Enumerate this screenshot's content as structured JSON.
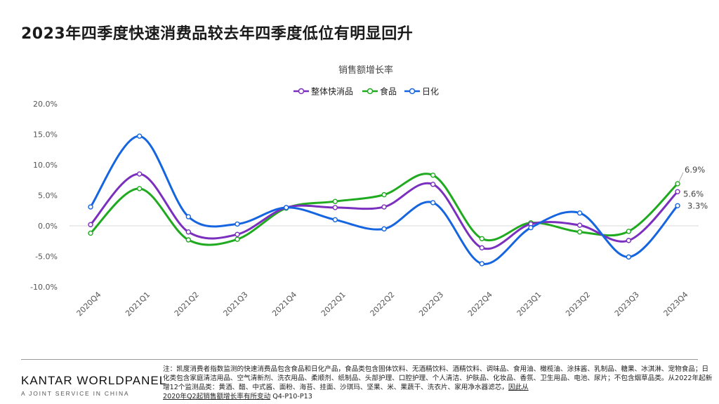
{
  "page_title": "2023年四季度快速消费品较去年四季度低位有明显回升",
  "chart_data": {
    "type": "line",
    "title": "销售额增长率",
    "categories": [
      "2020Q4",
      "2021Q1",
      "2021Q2",
      "2021Q3",
      "2021Q4",
      "2022Q1",
      "2022Q2",
      "2022Q3",
      "2022Q4",
      "2023Q1",
      "2023Q2",
      "2023Q3",
      "2023Q4"
    ],
    "ylim": [
      -10,
      20
    ],
    "yticks": [
      "-10.0%",
      "-5.0%",
      "0.0%",
      "5.0%",
      "10.0%",
      "15.0%",
      "20.0%"
    ],
    "grid": "zero line only",
    "legend_position": "top-center",
    "series": [
      {
        "name": "整体快消品",
        "color": "#7b2fbe",
        "values": [
          0.2,
          8.5,
          -1.0,
          -1.4,
          3.0,
          3.0,
          3.1,
          6.8,
          -3.6,
          0.3,
          0.1,
          -2.4,
          5.6
        ]
      },
      {
        "name": "食品",
        "color": "#1faa1f",
        "values": [
          -1.2,
          6.1,
          -2.3,
          -2.2,
          2.9,
          4.0,
          5.1,
          8.3,
          -2.1,
          0.5,
          -1.0,
          -0.9,
          6.9
        ]
      },
      {
        "name": "日化",
        "color": "#1565e0",
        "values": [
          3.1,
          14.7,
          1.5,
          0.3,
          3.0,
          1.0,
          -0.5,
          3.8,
          -6.2,
          -0.3,
          2.1,
          -5.1,
          3.3
        ]
      }
    ],
    "end_labels": [
      "5.6%",
      "6.9%",
      "3.3%"
    ]
  },
  "footer": {
    "brand": "KANTAR WORLDPANEL",
    "brand_sub": "A JOINT SERVICE IN CHINA",
    "note_main": "注：凯度消费者指数监测的快速消费品包含食品和日化产品，食品类包含固体饮料、无酒精饮料、酒精饮料、调味品、食用油、橄榄油、涂抹酱、乳制品、糖果、冰淇淋、宠物食品；日化类包含家庭清洁用品、空气清新剂、洗衣用品、柔顺剂、纸制品、头部护理、口腔护理、个人清洁、护肤品、化妆品、香氛、卫生用品、电池、尿片；不包含烟草品类。从2022年起新增12个监测品类：黄酒、醋、中式酱、面粉、海苔、挂面、沙琪玛、坚果、米、果蔬干、洗衣片、家用净水器滤芯，",
    "note_underline_1": "因此从",
    "note_underline_2": "2020年Q2起销售额增长率有所变动",
    "note_tail": " Q4-P10-P13"
  }
}
